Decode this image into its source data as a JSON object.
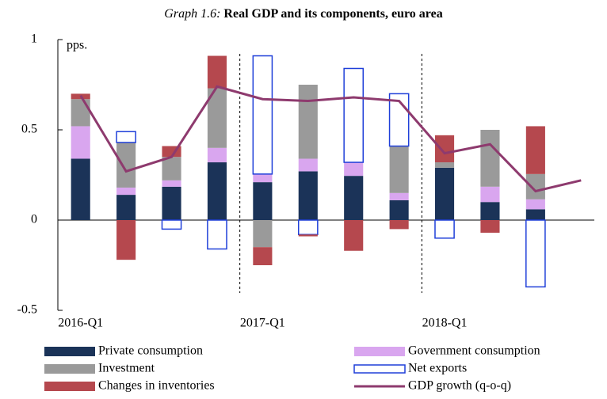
{
  "chart_data": {
    "type": "bar",
    "title_prefix": "Graph 1.6:",
    "title": "Real GDP and its components, euro area",
    "y_label": "pps.",
    "categories": [
      "2016-Q1",
      null,
      null,
      null,
      "2017-Q1",
      null,
      null,
      null,
      "2018-Q1",
      null,
      null,
      null
    ],
    "ylim": [
      -0.5,
      1
    ],
    "yticks": [
      -0.5,
      0,
      0.5,
      1
    ],
    "series": [
      {
        "name": "Private consumption",
        "color": "#1b3358",
        "values": [
          0.34,
          0.14,
          0.185,
          0.32,
          0.21,
          0.27,
          0.245,
          0.11,
          0.29,
          0.1,
          0.06,
          null
        ]
      },
      {
        "name": "Government consumption",
        "color": "#d9a6ef",
        "values": [
          0.18,
          0.04,
          0.035,
          0.08,
          0.045,
          0.07,
          0.075,
          0.04,
          0,
          0.085,
          0.055,
          null
        ]
      },
      {
        "name": "Investment",
        "color": "#9a9a9a",
        "values": [
          0.15,
          0.25,
          0.13,
          0.33,
          -0.15,
          0.41,
          0,
          0.26,
          0.03,
          0.315,
          0.14,
          null
        ]
      },
      {
        "name": "Net exports",
        "color": "#1f3fd9",
        "outline": true,
        "values": [
          0,
          0.06,
          -0.05,
          -0.16,
          0.655,
          -0.08,
          0.52,
          0.29,
          -0.1,
          0,
          -0.37,
          null
        ]
      },
      {
        "name": "Changes in inventories",
        "color": "#b5484e",
        "values": [
          0.03,
          -0.22,
          0.06,
          0.18,
          -0.1,
          -0.01,
          -0.17,
          -0.05,
          0.15,
          -0.07,
          0.265,
          null
        ]
      },
      {
        "name": "GDP growth (q-o-q)",
        "color": "#8e3a6e",
        "type": "line",
        "values": [
          0.69,
          0.27,
          0.35,
          0.74,
          0.67,
          0.66,
          0.68,
          0.66,
          0.37,
          0.42,
          0.16,
          0.22
        ]
      }
    ]
  }
}
